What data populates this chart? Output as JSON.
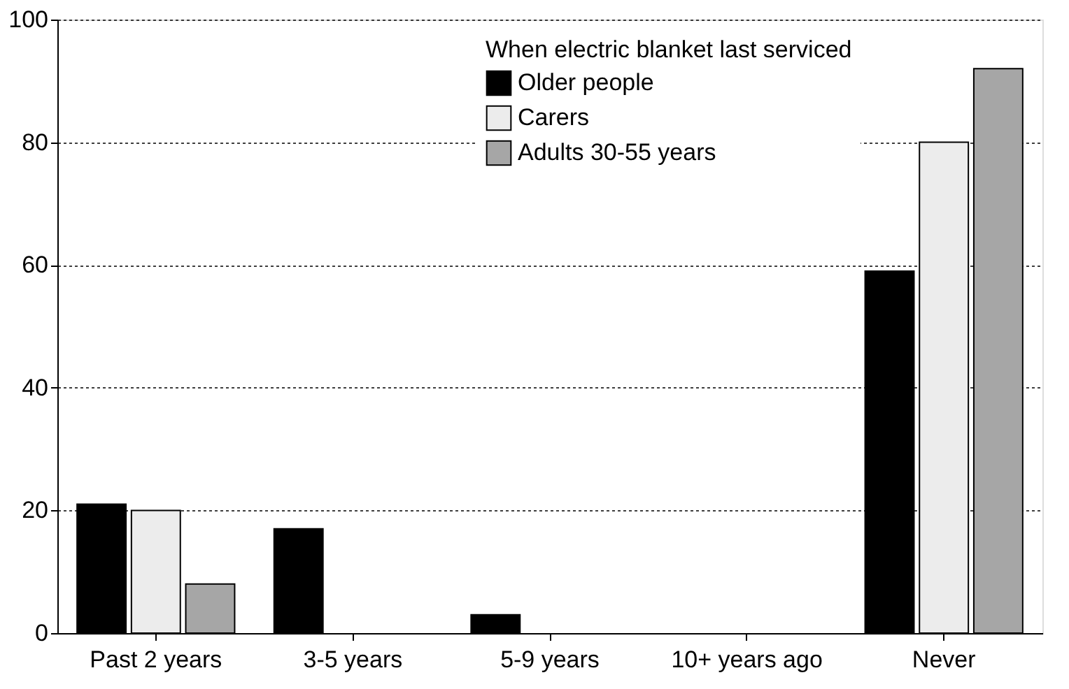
{
  "chart_data": {
    "type": "bar",
    "legend_title": "When electric blanket last serviced",
    "categories": [
      "Past 2 years",
      "3-5 years",
      "5-9 years",
      "10+ years ago",
      "Never"
    ],
    "series": [
      {
        "name": "Older people",
        "color": "#000000",
        "values": [
          21,
          17,
          3,
          null,
          59
        ]
      },
      {
        "name": "Carers",
        "color": "#ececec",
        "values": [
          20,
          null,
          null,
          null,
          80
        ]
      },
      {
        "name": "Adults 30-55 years",
        "color": "#a6a6a6",
        "values": [
          8,
          null,
          null,
          null,
          92
        ]
      }
    ],
    "ylim": [
      0,
      100
    ],
    "yticks": [
      0,
      20,
      40,
      60,
      80,
      100
    ],
    "grid": "y",
    "legend": "top right"
  }
}
